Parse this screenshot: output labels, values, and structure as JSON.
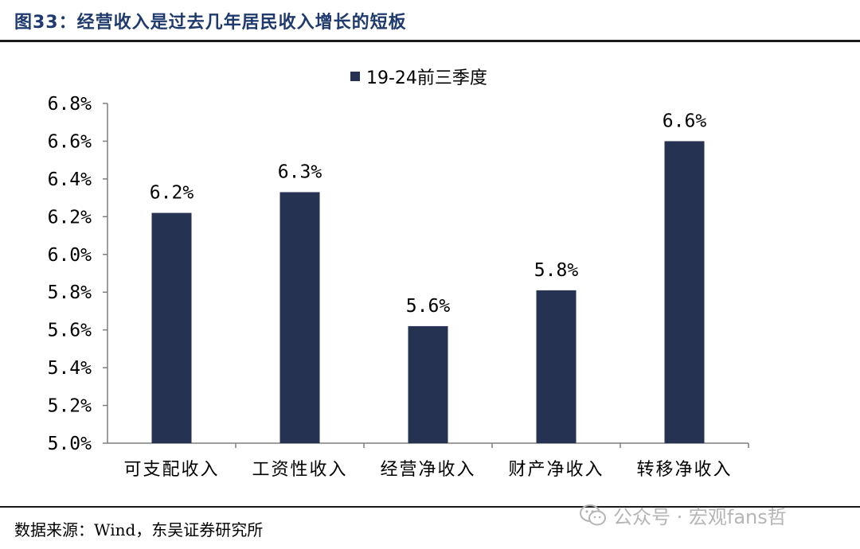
{
  "title": "图33：经营收入是过去几年居民收入增长的短板",
  "source": "数据来源：Wind，东吴证券研究所",
  "watermark": "公众号 · 宏观fans哲",
  "colors": {
    "bar": "#263252",
    "title": "#1f3a6e",
    "axis": "#7f7f7f"
  },
  "chart_data": {
    "type": "bar",
    "categories": [
      "可支配收入",
      "工资性收入",
      "经营净收入",
      "财产净收入",
      "转移净收入"
    ],
    "series": [
      {
        "name": "19-24前三季度",
        "values": [
          6.22,
          6.33,
          5.62,
          5.81,
          6.6
        ]
      }
    ],
    "data_labels": [
      "6.2%",
      "6.3%",
      "5.6%",
      "5.8%",
      "6.6%"
    ],
    "y_ticks": [
      "5.0%",
      "5.2%",
      "5.4%",
      "5.6%",
      "5.8%",
      "6.0%",
      "6.2%",
      "6.4%",
      "6.6%",
      "6.8%"
    ],
    "ylim": [
      5.0,
      6.8
    ],
    "grid": false,
    "legend_position": "top-center"
  }
}
